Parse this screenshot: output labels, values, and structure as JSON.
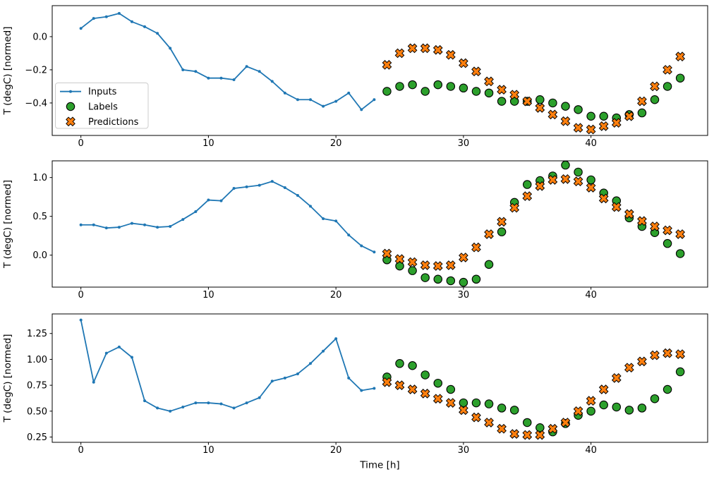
{
  "figure": {
    "xlabel": "Time [h]",
    "ylabel": "T (degC) [normed]",
    "colors": {
      "inputs": "#1f77b4",
      "labels": "#2ca02c",
      "predictions": "#ff7f0e",
      "marker_edge": "#000000",
      "spine": "#000000",
      "legend_border": "#cccccc"
    },
    "legend": {
      "items": [
        {
          "label": "Inputs",
          "marker": "line-dot",
          "color": "#1f77b4"
        },
        {
          "label": "Labels",
          "marker": "circle",
          "color": "#2ca02c"
        },
        {
          "label": "Predictions",
          "marker": "x-cross",
          "color": "#ff7f0e"
        }
      ]
    }
  },
  "chart_data": [
    {
      "type": "line",
      "title": "",
      "xlabel": "",
      "ylabel": "T (degC) [normed]",
      "xlim": [
        -2.25,
        49.15
      ],
      "ylim": [
        -0.596,
        0.187
      ],
      "xticks": [
        0,
        10,
        20,
        30,
        40
      ],
      "xtick_labels": [
        "0",
        "10",
        "20",
        "30",
        "40"
      ],
      "yticks": [
        0.0,
        -0.2,
        -0.4
      ],
      "ytick_labels": [
        "0.0",
        "−0.2",
        "−0.4"
      ],
      "grid": false,
      "legend_position": "center-left",
      "show_legend": true,
      "series": [
        {
          "name": "Inputs",
          "type": "line",
          "marker": "dot",
          "color": "#1f77b4",
          "x": [
            0,
            1,
            2,
            3,
            4,
            5,
            6,
            7,
            8,
            9,
            10,
            11,
            12,
            13,
            14,
            15,
            16,
            17,
            18,
            19,
            20,
            21,
            22,
            23
          ],
          "y": [
            0.05,
            0.11,
            0.12,
            0.14,
            0.09,
            0.06,
            0.02,
            -0.07,
            -0.2,
            -0.21,
            -0.25,
            -0.25,
            -0.26,
            -0.18,
            -0.21,
            -0.27,
            -0.34,
            -0.38,
            -0.38,
            -0.42,
            -0.39,
            -0.34,
            -0.44,
            -0.38
          ]
        },
        {
          "name": "Labels",
          "type": "scatter",
          "marker": "circle",
          "color": "#2ca02c",
          "edgecolor": "#000000",
          "x": [
            24,
            25,
            26,
            27,
            28,
            29,
            30,
            31,
            32,
            33,
            34,
            35,
            36,
            37,
            38,
            39,
            40,
            41,
            42,
            43,
            44,
            45,
            46,
            47
          ],
          "y": [
            -0.33,
            -0.3,
            -0.29,
            -0.33,
            -0.29,
            -0.3,
            -0.31,
            -0.33,
            -0.34,
            -0.39,
            -0.39,
            -0.39,
            -0.38,
            -0.4,
            -0.42,
            -0.44,
            -0.48,
            -0.48,
            -0.49,
            -0.47,
            -0.46,
            -0.38,
            -0.3,
            -0.25
          ]
        },
        {
          "name": "Predictions",
          "type": "scatter",
          "marker": "X",
          "color": "#ff7f0e",
          "edgecolor": "#000000",
          "x": [
            24,
            25,
            26,
            27,
            28,
            29,
            30,
            31,
            32,
            33,
            34,
            35,
            36,
            37,
            38,
            39,
            40,
            41,
            42,
            43,
            44,
            45,
            46,
            47
          ],
          "y": [
            -0.17,
            -0.1,
            -0.07,
            -0.07,
            -0.08,
            -0.11,
            -0.16,
            -0.21,
            -0.27,
            -0.32,
            -0.35,
            -0.39,
            -0.43,
            -0.47,
            -0.51,
            -0.55,
            -0.56,
            -0.54,
            -0.52,
            -0.48,
            -0.39,
            -0.3,
            -0.2,
            -0.12
          ]
        }
      ]
    },
    {
      "type": "line",
      "title": "",
      "xlabel": "",
      "ylabel": "T (degC) [normed]",
      "xlim": [
        -2.25,
        49.15
      ],
      "ylim": [
        -0.412,
        1.215
      ],
      "xticks": [
        0,
        10,
        20,
        30,
        40
      ],
      "xtick_labels": [
        "0",
        "10",
        "20",
        "30",
        "40"
      ],
      "yticks": [
        1.0,
        0.5,
        0.0
      ],
      "ytick_labels": [
        "1.0",
        "0.5",
        "0.0"
      ],
      "grid": false,
      "show_legend": false,
      "series": [
        {
          "name": "Inputs",
          "type": "line",
          "marker": "dot",
          "color": "#1f77b4",
          "x": [
            0,
            1,
            2,
            3,
            4,
            5,
            6,
            7,
            8,
            9,
            10,
            11,
            12,
            13,
            14,
            15,
            16,
            17,
            18,
            19,
            20,
            21,
            22,
            23
          ],
          "y": [
            0.39,
            0.39,
            0.35,
            0.36,
            0.41,
            0.39,
            0.36,
            0.37,
            0.46,
            0.56,
            0.71,
            0.7,
            0.86,
            0.88,
            0.9,
            0.95,
            0.87,
            0.77,
            0.63,
            0.47,
            0.44,
            0.26,
            0.12,
            0.04
          ]
        },
        {
          "name": "Labels",
          "type": "scatter",
          "marker": "circle",
          "color": "#2ca02c",
          "edgecolor": "#000000",
          "x": [
            24,
            25,
            26,
            27,
            28,
            29,
            30,
            31,
            32,
            33,
            34,
            35,
            36,
            37,
            38,
            39,
            40,
            41,
            42,
            43,
            44,
            45,
            46,
            47
          ],
          "y": [
            -0.06,
            -0.14,
            -0.2,
            -0.29,
            -0.31,
            -0.33,
            -0.35,
            -0.31,
            -0.12,
            0.3,
            0.68,
            0.91,
            0.96,
            1.02,
            1.16,
            1.07,
            0.97,
            0.8,
            0.7,
            0.48,
            0.37,
            0.29,
            0.15,
            0.02
          ]
        },
        {
          "name": "Predictions",
          "type": "scatter",
          "marker": "X",
          "color": "#ff7f0e",
          "edgecolor": "#000000",
          "x": [
            24,
            25,
            26,
            27,
            28,
            29,
            30,
            31,
            32,
            33,
            34,
            35,
            36,
            37,
            38,
            39,
            40,
            41,
            42,
            43,
            44,
            45,
            46,
            47
          ],
          "y": [
            0.02,
            -0.05,
            -0.09,
            -0.13,
            -0.14,
            -0.13,
            -0.03,
            0.1,
            0.27,
            0.43,
            0.61,
            0.76,
            0.89,
            0.97,
            0.98,
            0.95,
            0.87,
            0.73,
            0.62,
            0.53,
            0.44,
            0.37,
            0.32,
            0.27
          ]
        }
      ]
    },
    {
      "type": "line",
      "title": "",
      "xlabel": "Time [h]",
      "ylabel": "T (degC) [normed]",
      "xlim": [
        -2.25,
        49.15
      ],
      "ylim": [
        0.199,
        1.439
      ],
      "xticks": [
        0,
        10,
        20,
        30,
        40
      ],
      "xtick_labels": [
        "0",
        "10",
        "20",
        "30",
        "40"
      ],
      "yticks": [
        1.25,
        1.0,
        0.75,
        0.5,
        0.25
      ],
      "ytick_labels": [
        "1.25",
        "1.00",
        "0.75",
        "0.50",
        "0.25"
      ],
      "grid": false,
      "show_legend": false,
      "series": [
        {
          "name": "Inputs",
          "type": "line",
          "marker": "dot",
          "color": "#1f77b4",
          "x": [
            0,
            1,
            2,
            3,
            4,
            5,
            6,
            7,
            8,
            9,
            10,
            11,
            12,
            13,
            14,
            15,
            16,
            17,
            18,
            19,
            20,
            21,
            22,
            23
          ],
          "y": [
            1.38,
            0.78,
            1.06,
            1.12,
            1.02,
            0.6,
            0.53,
            0.5,
            0.54,
            0.58,
            0.58,
            0.57,
            0.53,
            0.58,
            0.63,
            0.79,
            0.82,
            0.86,
            0.96,
            1.08,
            1.2,
            0.82,
            0.7,
            0.72
          ]
        },
        {
          "name": "Labels",
          "type": "scatter",
          "marker": "circle",
          "color": "#2ca02c",
          "edgecolor": "#000000",
          "x": [
            24,
            25,
            26,
            27,
            28,
            29,
            30,
            31,
            32,
            33,
            34,
            35,
            36,
            37,
            38,
            39,
            40,
            41,
            42,
            43,
            44,
            45,
            46,
            47
          ],
          "y": [
            0.83,
            0.96,
            0.94,
            0.85,
            0.77,
            0.71,
            0.58,
            0.58,
            0.57,
            0.53,
            0.51,
            0.39,
            0.34,
            0.3,
            0.38,
            0.46,
            0.5,
            0.56,
            0.54,
            0.51,
            0.53,
            0.62,
            0.71,
            0.88
          ]
        },
        {
          "name": "Predictions",
          "type": "scatter",
          "marker": "X",
          "color": "#ff7f0e",
          "edgecolor": "#000000",
          "x": [
            24,
            25,
            26,
            27,
            28,
            29,
            30,
            31,
            32,
            33,
            34,
            35,
            36,
            37,
            38,
            39,
            40,
            41,
            42,
            43,
            44,
            45,
            46,
            47
          ],
          "y": [
            0.78,
            0.75,
            0.71,
            0.67,
            0.62,
            0.58,
            0.51,
            0.44,
            0.39,
            0.33,
            0.28,
            0.27,
            0.27,
            0.33,
            0.39,
            0.5,
            0.6,
            0.71,
            0.82,
            0.92,
            0.98,
            1.04,
            1.06,
            1.05
          ]
        }
      ]
    }
  ]
}
